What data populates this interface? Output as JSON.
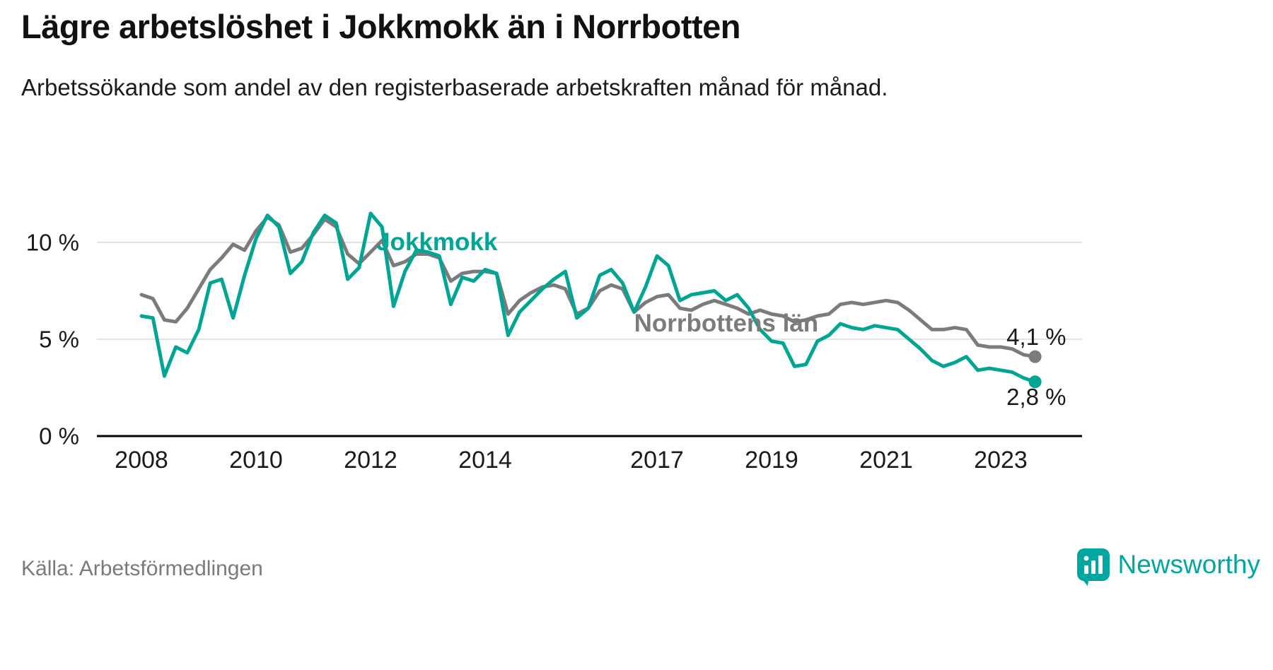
{
  "header": {
    "title": "Lägre arbetslöshet i Jokkmokk än i Norrbotten",
    "subtitle": "Arbetssökande som andel av den registerbaserade arbetskraften månad för månad."
  },
  "footer": {
    "source": "Källa: Arbetsförmedlingen",
    "brand": "Newsworthy"
  },
  "colors": {
    "jokkmokk": "#00a693",
    "norrbotten": "#7b7b7b",
    "grid": "#d9d9d9",
    "axis": "#000000",
    "text": "#1a1a1a",
    "value_label": "#1a1a1a",
    "brand_teal": "#00a6a0",
    "source_text": "#7a7a7a"
  },
  "chart_data": {
    "type": "line",
    "title": "Lägre arbetslöshet i Jokkmokk än i Norrbotten",
    "subtitle": "Arbetssökande som andel av den registerbaserade arbetskraften månad för månad.",
    "xlabel": "",
    "ylabel": "",
    "x_start": 2008.0,
    "x_step": 0.2,
    "x_end": 2023.6,
    "xlim": [
      2007.2,
      2024.4
    ],
    "ylim": [
      0,
      12
    ],
    "grid": "horizontal",
    "legend_position": "inline-labels",
    "yticks": [
      {
        "value": 0,
        "label": "0 %"
      },
      {
        "value": 5,
        "label": "5 %"
      },
      {
        "value": 10,
        "label": "10 %"
      }
    ],
    "xticks": [
      {
        "value": 2008,
        "label": "2008"
      },
      {
        "value": 2010,
        "label": "2010"
      },
      {
        "value": 2012,
        "label": "2012"
      },
      {
        "value": 2014,
        "label": "2014"
      },
      {
        "value": 2017,
        "label": "2017"
      },
      {
        "value": 2019,
        "label": "2019"
      },
      {
        "value": 2021,
        "label": "2021"
      },
      {
        "value": 2023,
        "label": "2023"
      }
    ],
    "series": [
      {
        "name": "Norrbottens län",
        "color": "#7b7b7b",
        "end_value": 4.1,
        "end_label": "4,1 %",
        "values": [
          7.3,
          7.1,
          6.0,
          5.9,
          6.6,
          7.6,
          8.6,
          9.2,
          9.9,
          9.6,
          10.6,
          11.3,
          10.9,
          9.5,
          9.7,
          10.4,
          11.2,
          10.8,
          9.4,
          8.9,
          9.5,
          10.1,
          8.8,
          9.0,
          9.4,
          9.4,
          9.2,
          8.0,
          8.4,
          8.5,
          8.5,
          8.4,
          6.3,
          7.0,
          7.4,
          7.7,
          7.8,
          7.6,
          6.3,
          6.6,
          7.5,
          7.8,
          7.6,
          6.4,
          6.9,
          7.2,
          7.3,
          6.6,
          6.5,
          6.8,
          7.0,
          6.8,
          6.6,
          6.3,
          6.5,
          6.3,
          6.2,
          5.9,
          6.0,
          6.2,
          6.3,
          6.8,
          6.9,
          6.8,
          6.9,
          7.0,
          6.9,
          6.5,
          6.0,
          5.5,
          5.5,
          5.6,
          5.5,
          4.7,
          4.6,
          4.6,
          4.5,
          4.2,
          4.1
        ]
      },
      {
        "name": "Jokkmokk",
        "color": "#00a693",
        "end_value": 2.8,
        "end_label": "2,8 %",
        "values": [
          6.2,
          6.1,
          3.1,
          4.6,
          4.3,
          5.5,
          7.9,
          8.1,
          6.1,
          8.3,
          10.2,
          11.4,
          10.8,
          8.4,
          9.0,
          10.5,
          11.4,
          11.0,
          8.1,
          8.7,
          11.5,
          10.8,
          6.7,
          8.5,
          9.6,
          9.5,
          9.3,
          6.8,
          8.2,
          8.0,
          8.6,
          8.4,
          5.2,
          6.4,
          7.0,
          7.6,
          8.1,
          8.5,
          6.1,
          6.6,
          8.3,
          8.6,
          7.9,
          6.4,
          7.7,
          9.3,
          8.8,
          7.0,
          7.3,
          7.4,
          7.5,
          7.0,
          7.3,
          6.6,
          5.5,
          4.9,
          4.8,
          3.6,
          3.7,
          4.9,
          5.2,
          5.8,
          5.6,
          5.5,
          5.7,
          5.6,
          5.5,
          5.0,
          4.5,
          3.9,
          3.6,
          3.8,
          4.1,
          3.4,
          3.5,
          3.4,
          3.3,
          3.0,
          2.8
        ]
      }
    ],
    "annotations": [
      {
        "text": "Jokkmokk",
        "x": 2012.1,
        "y": 9.6,
        "color": "#00a693",
        "bold": true,
        "anchor": "start",
        "name": "series-label-jokkmokk"
      },
      {
        "text": "Norrbottens län",
        "x": 2016.6,
        "y": 5.4,
        "color": "#7b7b7b",
        "bold": true,
        "anchor": "start",
        "name": "series-label-norrbotten"
      },
      {
        "text": "4,1 %",
        "x": 2023.1,
        "y": 4.7,
        "color": "#1a1a1a",
        "bold": false,
        "anchor": "start",
        "name": "end-value-label-norrbotten"
      },
      {
        "text": "2,8 %",
        "x": 2023.1,
        "y": 1.6,
        "color": "#1a1a1a",
        "bold": false,
        "anchor": "start",
        "name": "end-value-label-jokkmokk"
      }
    ]
  }
}
